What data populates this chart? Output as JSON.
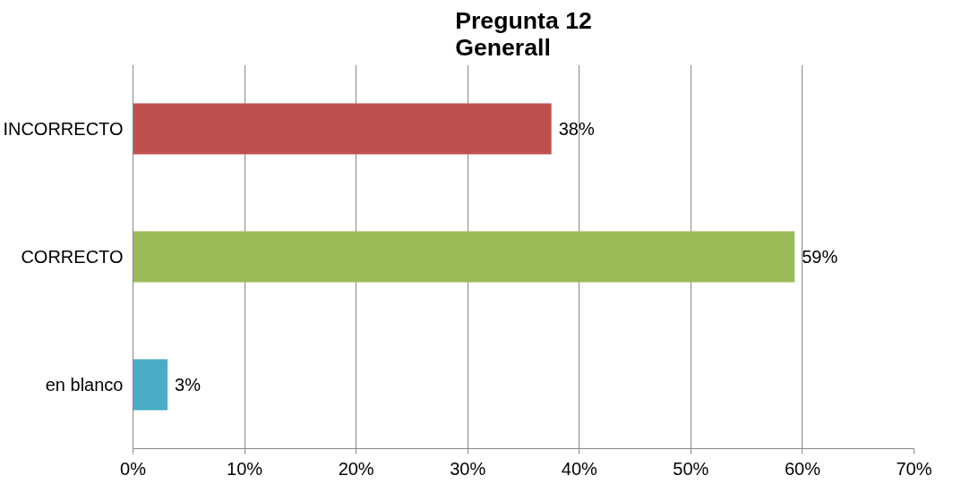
{
  "chart_data": {
    "type": "bar",
    "orientation": "horizontal",
    "title": "Pregunta 12\nGenerall",
    "categories": [
      "INCORRECTO",
      "CORRECTO",
      "en blanco"
    ],
    "values": [
      37.5,
      59.3,
      3.1
    ],
    "colors": [
      "#c0504d",
      "#9bbb59",
      "#4bacc6"
    ],
    "value_labels": [
      "38%",
      "59%",
      "3%"
    ],
    "xlim": [
      0,
      70
    ],
    "xticks": [
      {
        "value": 0,
        "label": "0%"
      },
      {
        "value": 10,
        "label": "10%"
      },
      {
        "value": 20,
        "label": "20%"
      },
      {
        "value": 30,
        "label": "30%"
      },
      {
        "value": 40,
        "label": "40%"
      },
      {
        "value": 50,
        "label": "50%"
      },
      {
        "value": 60,
        "label": "60%"
      },
      {
        "value": 70,
        "label": "70%"
      }
    ],
    "grid": "x"
  }
}
